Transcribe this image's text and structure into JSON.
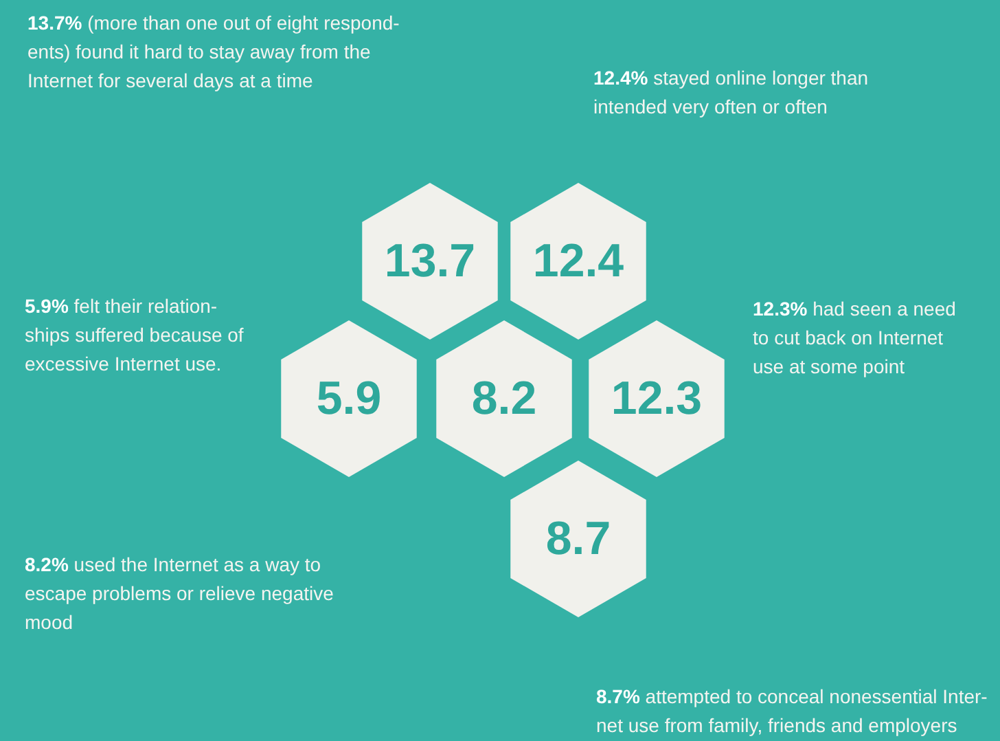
{
  "chart_data": {
    "type": "other",
    "categories": [
      "13.7% (more than one out of eight respond-\nents) found it hard to stay away from the\nInternet for several days at a time",
      "12.4% stayed online longer than\nintended very often or often",
      "5.9% felt their relation-\nships suffered because of\nexcessive Internet use.",
      "8.2% used the Internet as a way to\nescape problems or relieve negative\nmood",
      "12.3% had seen a need\nto cut back on Internet\nuse at some point",
      "8.7% attempted to conceal nonessential Inter-\nnet use from family, friends and employers"
    ],
    "values": [
      13.7,
      12.4,
      5.9,
      8.2,
      12.3,
      8.7
    ],
    "color": "#f1f1ec",
    "data_labels": true
  }
}
